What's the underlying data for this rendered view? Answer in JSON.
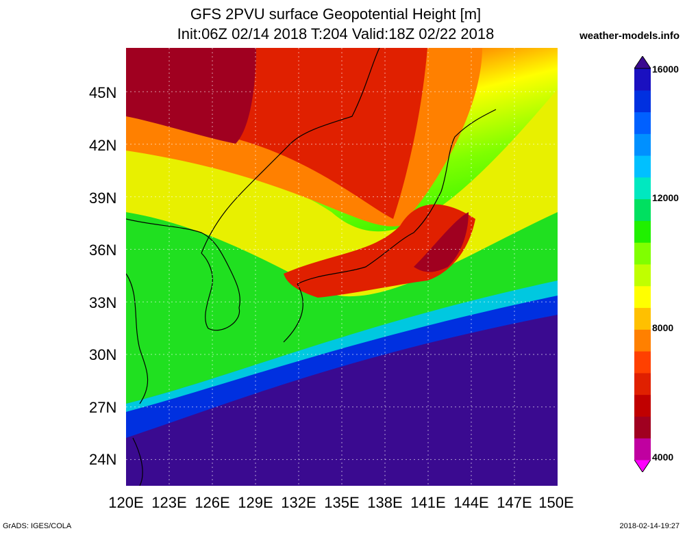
{
  "title_line1": "GFS 2PVU surface Geopotential Height [m]",
  "title_line2": "Init:06Z 02/14 2018 T:204 Valid:18Z 02/22 2018",
  "site": "weather-models.info",
  "lat_ticks": [
    "45N",
    "42N",
    "39N",
    "36N",
    "33N",
    "30N",
    "27N",
    "24N"
  ],
  "lon_ticks": [
    "120E",
    "123E",
    "126E",
    "129E",
    "132E",
    "135E",
    "138E",
    "141E",
    "144E",
    "147E",
    "150E"
  ],
  "colorbar": {
    "labels": [
      "16000",
      "12000",
      "8000",
      "4000"
    ],
    "colors": [
      "#ff00ff",
      "#c000a0",
      "#a00020",
      "#c00000",
      "#e02000",
      "#ff4000",
      "#ff8000",
      "#ffc000",
      "#ffff00",
      "#c0ff00",
      "#80ff00",
      "#20f000",
      "#00e060",
      "#00e8c0",
      "#00c0ff",
      "#0090ff",
      "#0060ff",
      "#0030e0",
      "#1a10c0",
      "#3a0a90"
    ]
  },
  "footer_left": "GrADS: IGES/COLA",
  "footer_right": "2018-02-14-19:27",
  "map": {
    "extent": {
      "lon_min": 120,
      "lon_max": 150,
      "lat_min": 22.5,
      "lat_max": 47.5
    },
    "field_colors": {
      "low_red": "#e02000",
      "dark_red": "#a00020",
      "orange": "#ff8000",
      "yellow": "#ffff00",
      "green": "#20f000",
      "cyan": "#00e8c0",
      "blue": "#0030e0",
      "purple": "#3a0a90"
    }
  }
}
